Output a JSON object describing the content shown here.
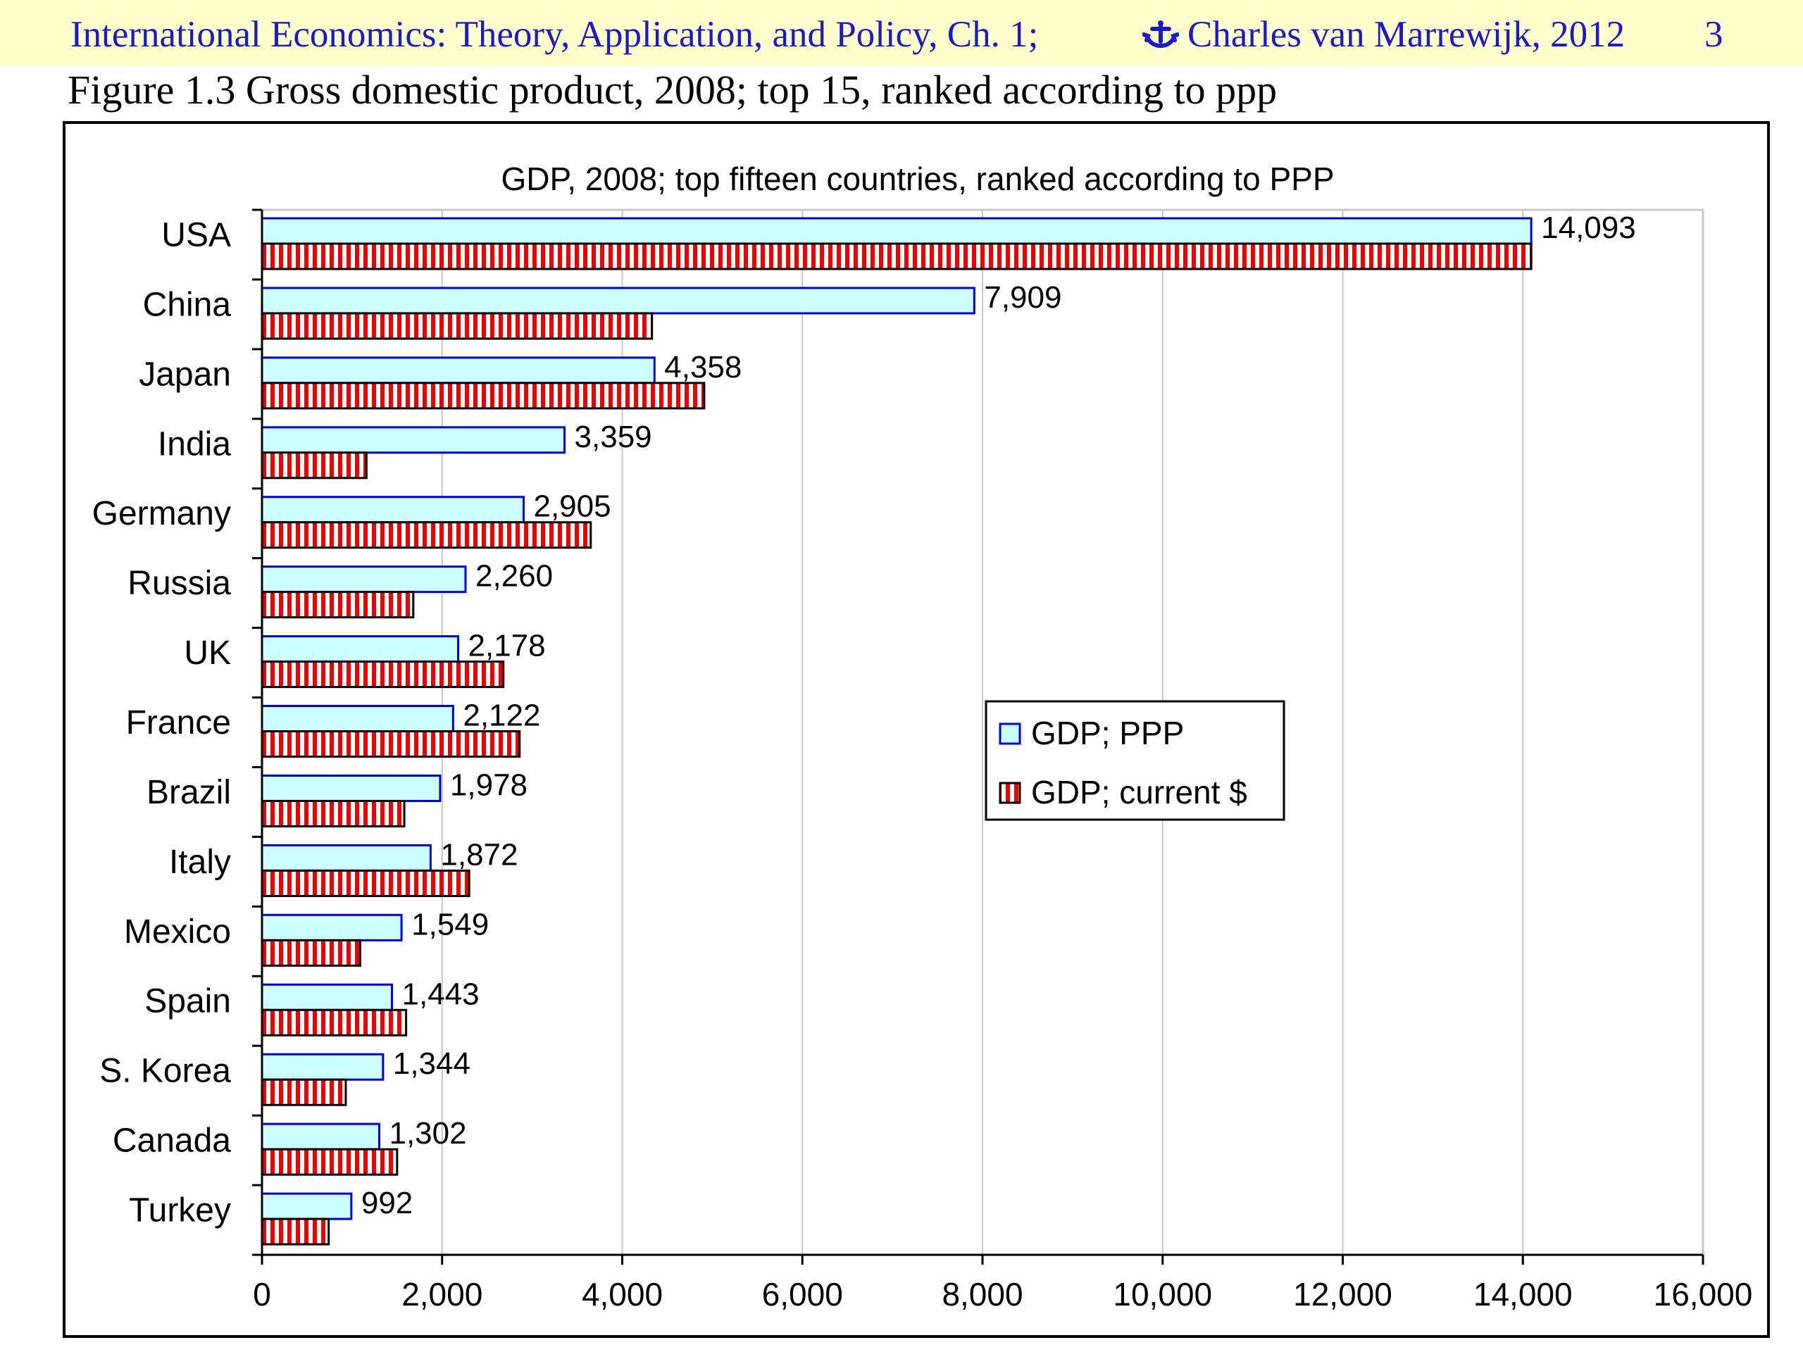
{
  "header": {
    "title": "International Economics: Theory, Application, and Policy, Ch. 1;",
    "author": "Charles van Marrewijk, 2012",
    "page_number": "3",
    "author_icon": "anchor-icon"
  },
  "figure_caption": "Figure 1.3 Gross domestic product, 2008; top 15, ranked according to ppp",
  "colors": {
    "header_background": "#ffffcc",
    "header_text": "#1a1acc",
    "ppp_fill": "#ccffff",
    "ppp_stroke": "#0000ee",
    "current_stripe": "#ee0000",
    "current_stroke": "#000000",
    "grid": "#c8c8c8"
  },
  "chart_data": {
    "type": "bar",
    "orientation": "horizontal",
    "title": "GDP, 2008; top fifteen countries, ranked according to PPP",
    "xlabel": "",
    "ylabel": "",
    "categories": [
      "USA",
      "China",
      "Japan",
      "India",
      "Germany",
      "Russia",
      "UK",
      "France",
      "Brazil",
      "Italy",
      "Mexico",
      "Spain",
      "S. Korea",
      "Canada",
      "Turkey"
    ],
    "series": [
      {
        "name": "GDP; PPP",
        "values": [
          14093,
          7909,
          4358,
          3359,
          2905,
          2260,
          2178,
          2122,
          1978,
          1872,
          1549,
          1443,
          1344,
          1302,
          992
        ],
        "value_labels": [
          "14,093",
          "7,909",
          "4,358",
          "3,359",
          "2,905",
          "2,260",
          "2,178",
          "2,122",
          "1,978",
          "1,872",
          "1,549",
          "1,443",
          "1,344",
          "1,302",
          "992"
        ]
      },
      {
        "name": "GDP; current $",
        "values": [
          14093,
          4330,
          4910,
          1160,
          3650,
          1680,
          2680,
          2860,
          1580,
          2300,
          1090,
          1600,
          930,
          1500,
          740
        ]
      }
    ],
    "xlim": [
      0,
      16000
    ],
    "x_ticks": [
      0,
      2000,
      4000,
      6000,
      8000,
      10000,
      12000,
      14000,
      16000
    ],
    "x_tick_labels": [
      "0",
      "2,000",
      "4,000",
      "6,000",
      "8,000",
      "10,000",
      "12,000",
      "14,000",
      "16,000"
    ],
    "grid": "vertical",
    "legend_position": "center-right"
  }
}
